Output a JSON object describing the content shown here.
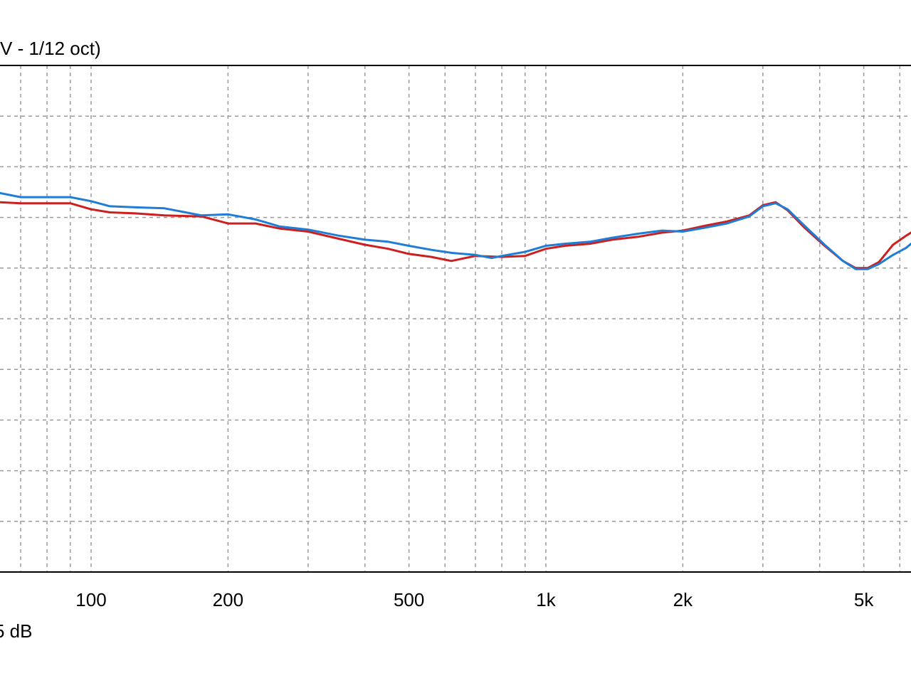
{
  "chart_data": {
    "type": "line",
    "title": "V - 1/12 oct)",
    "scale_note": "5 dB",
    "x_scale": "log",
    "xlim": [
      60,
      6800
    ],
    "ylim": [
      -50,
      0
    ],
    "y_gridlines": [
      -45,
      -40,
      -35,
      -30,
      -25,
      -20,
      -15,
      -10,
      -5
    ],
    "x_ticks": [
      {
        "value": 100,
        "label": "100"
      },
      {
        "value": 200,
        "label": "200"
      },
      {
        "value": 500,
        "label": "500"
      },
      {
        "value": 1000,
        "label": "1k"
      },
      {
        "value": 2000,
        "label": "2k"
      },
      {
        "value": 5000,
        "label": "5k"
      }
    ],
    "x_minor_gridlines": [
      70,
      80,
      90,
      300,
      400,
      600,
      700,
      800,
      900,
      3000,
      4000,
      6000
    ],
    "grid": true,
    "legend": "none",
    "series": [
      {
        "color": "#cc1f1f",
        "points": [
          [
            60,
            -13.5
          ],
          [
            70,
            -13.6
          ],
          [
            80,
            -13.6
          ],
          [
            90,
            -13.6
          ],
          [
            100,
            -14.2
          ],
          [
            110,
            -14.5
          ],
          [
            125,
            -14.6
          ],
          [
            145,
            -14.8
          ],
          [
            175,
            -14.9
          ],
          [
            200,
            -15.6
          ],
          [
            230,
            -15.6
          ],
          [
            260,
            -16.1
          ],
          [
            300,
            -16.4
          ],
          [
            350,
            -17.1
          ],
          [
            400,
            -17.7
          ],
          [
            450,
            -18.1
          ],
          [
            500,
            -18.6
          ],
          [
            560,
            -18.9
          ],
          [
            620,
            -19.3
          ],
          [
            700,
            -18.8
          ],
          [
            800,
            -18.9
          ],
          [
            900,
            -18.8
          ],
          [
            1000,
            -18.1
          ],
          [
            1100,
            -17.8
          ],
          [
            1250,
            -17.6
          ],
          [
            1400,
            -17.2
          ],
          [
            1600,
            -16.9
          ],
          [
            1800,
            -16.5
          ],
          [
            2000,
            -16.3
          ],
          [
            2250,
            -15.8
          ],
          [
            2500,
            -15.4
          ],
          [
            2800,
            -14.8
          ],
          [
            3000,
            -13.8
          ],
          [
            3200,
            -13.5
          ],
          [
            3400,
            -14.3
          ],
          [
            3700,
            -16.0
          ],
          [
            4100,
            -17.8
          ],
          [
            4500,
            -19.3
          ],
          [
            4800,
            -20.0
          ],
          [
            5100,
            -20.0
          ],
          [
            5400,
            -19.4
          ],
          [
            5800,
            -17.7
          ],
          [
            6200,
            -16.8
          ],
          [
            6800,
            -16.5
          ]
        ]
      },
      {
        "color": "#1f7dd6",
        "points": [
          [
            60,
            -12.6
          ],
          [
            70,
            -13.0
          ],
          [
            80,
            -13.0
          ],
          [
            90,
            -13.0
          ],
          [
            100,
            -13.4
          ],
          [
            110,
            -13.9
          ],
          [
            125,
            -14.0
          ],
          [
            145,
            -14.1
          ],
          [
            175,
            -14.8
          ],
          [
            200,
            -14.7
          ],
          [
            230,
            -15.2
          ],
          [
            260,
            -15.9
          ],
          [
            300,
            -16.2
          ],
          [
            350,
            -16.8
          ],
          [
            400,
            -17.2
          ],
          [
            450,
            -17.4
          ],
          [
            500,
            -17.8
          ],
          [
            560,
            -18.2
          ],
          [
            620,
            -18.5
          ],
          [
            700,
            -18.7
          ],
          [
            760,
            -19.0
          ],
          [
            800,
            -18.8
          ],
          [
            900,
            -18.4
          ],
          [
            1000,
            -17.8
          ],
          [
            1100,
            -17.6
          ],
          [
            1250,
            -17.4
          ],
          [
            1400,
            -17.0
          ],
          [
            1600,
            -16.6
          ],
          [
            1800,
            -16.3
          ],
          [
            2000,
            -16.4
          ],
          [
            2250,
            -16.0
          ],
          [
            2500,
            -15.6
          ],
          [
            2800,
            -14.9
          ],
          [
            3000,
            -13.9
          ],
          [
            3200,
            -13.6
          ],
          [
            3400,
            -14.2
          ],
          [
            3700,
            -15.8
          ],
          [
            4100,
            -17.7
          ],
          [
            4500,
            -19.3
          ],
          [
            4800,
            -20.1
          ],
          [
            5100,
            -20.1
          ],
          [
            5400,
            -19.6
          ],
          [
            5800,
            -18.7
          ],
          [
            6200,
            -18.0
          ],
          [
            6800,
            -17.6
          ]
        ]
      }
    ]
  }
}
